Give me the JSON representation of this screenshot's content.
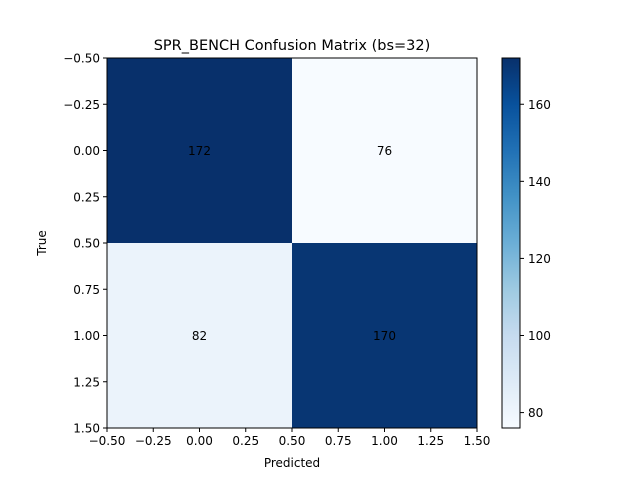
{
  "chart_data": {
    "type": "heatmap",
    "title": "SPR_BENCH Confusion Matrix (bs=32)",
    "xlabel": "Predicted",
    "ylabel": "True",
    "xlim": [
      -0.5,
      1.5
    ],
    "ylim": [
      1.5,
      -0.5
    ],
    "xticks": [
      "−0.50",
      "−0.25",
      "0.00",
      "0.25",
      "0.50",
      "0.75",
      "1.00",
      "1.25",
      "1.50"
    ],
    "yticks": [
      "−0.50",
      "−0.25",
      "0.00",
      "0.25",
      "0.50",
      "0.75",
      "1.00",
      "1.25",
      "1.50"
    ],
    "matrix": [
      [
        172,
        76
      ],
      [
        82,
        170
      ]
    ],
    "colormap": "Blues",
    "colorbar": {
      "vmin": 76,
      "vmax": 172,
      "ticks": [
        80,
        100,
        120,
        140,
        160
      ],
      "ticklabels": [
        "80",
        "100",
        "120",
        "140",
        "160"
      ]
    },
    "grid": false
  }
}
